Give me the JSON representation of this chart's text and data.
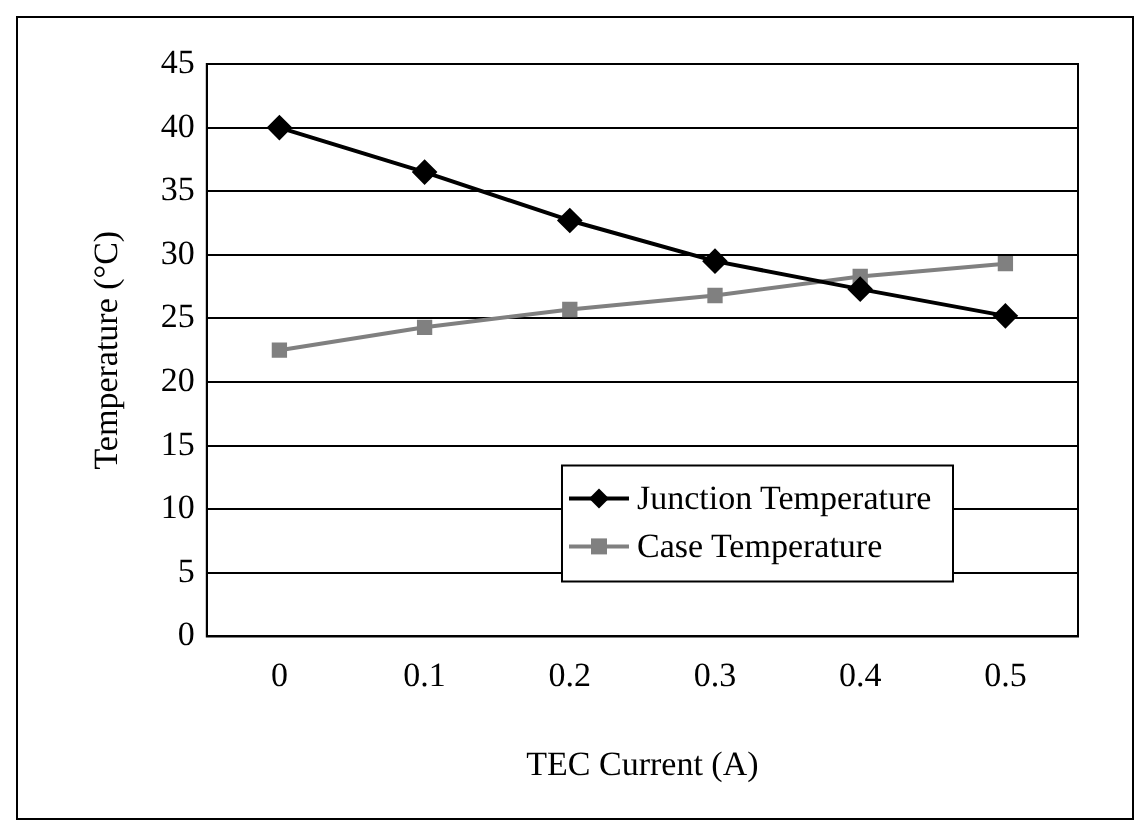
{
  "chart_data": {
    "type": "line",
    "xlabel": "TEC Current (A)",
    "ylabel": "Temperature (°C)",
    "categories": [
      "0",
      "0.1",
      "0.2",
      "0.3",
      "0.4",
      "0.5"
    ],
    "series": [
      {
        "name": "Junction Temperature",
        "color": "#000000",
        "marker": "diamond",
        "values": [
          40,
          36.5,
          32.7,
          29.5,
          27.3,
          25.2
        ]
      },
      {
        "name": "Case Temperature",
        "color": "#808080",
        "marker": "square",
        "values": [
          22.5,
          24.3,
          25.7,
          26.8,
          28.3,
          29.3
        ]
      }
    ],
    "ylim": [
      0,
      45
    ],
    "yticks": [
      0,
      5,
      10,
      15,
      20,
      25,
      30,
      35,
      40,
      45
    ],
    "grid": "y",
    "legend": "bottom right",
    "line_style": "solid"
  }
}
